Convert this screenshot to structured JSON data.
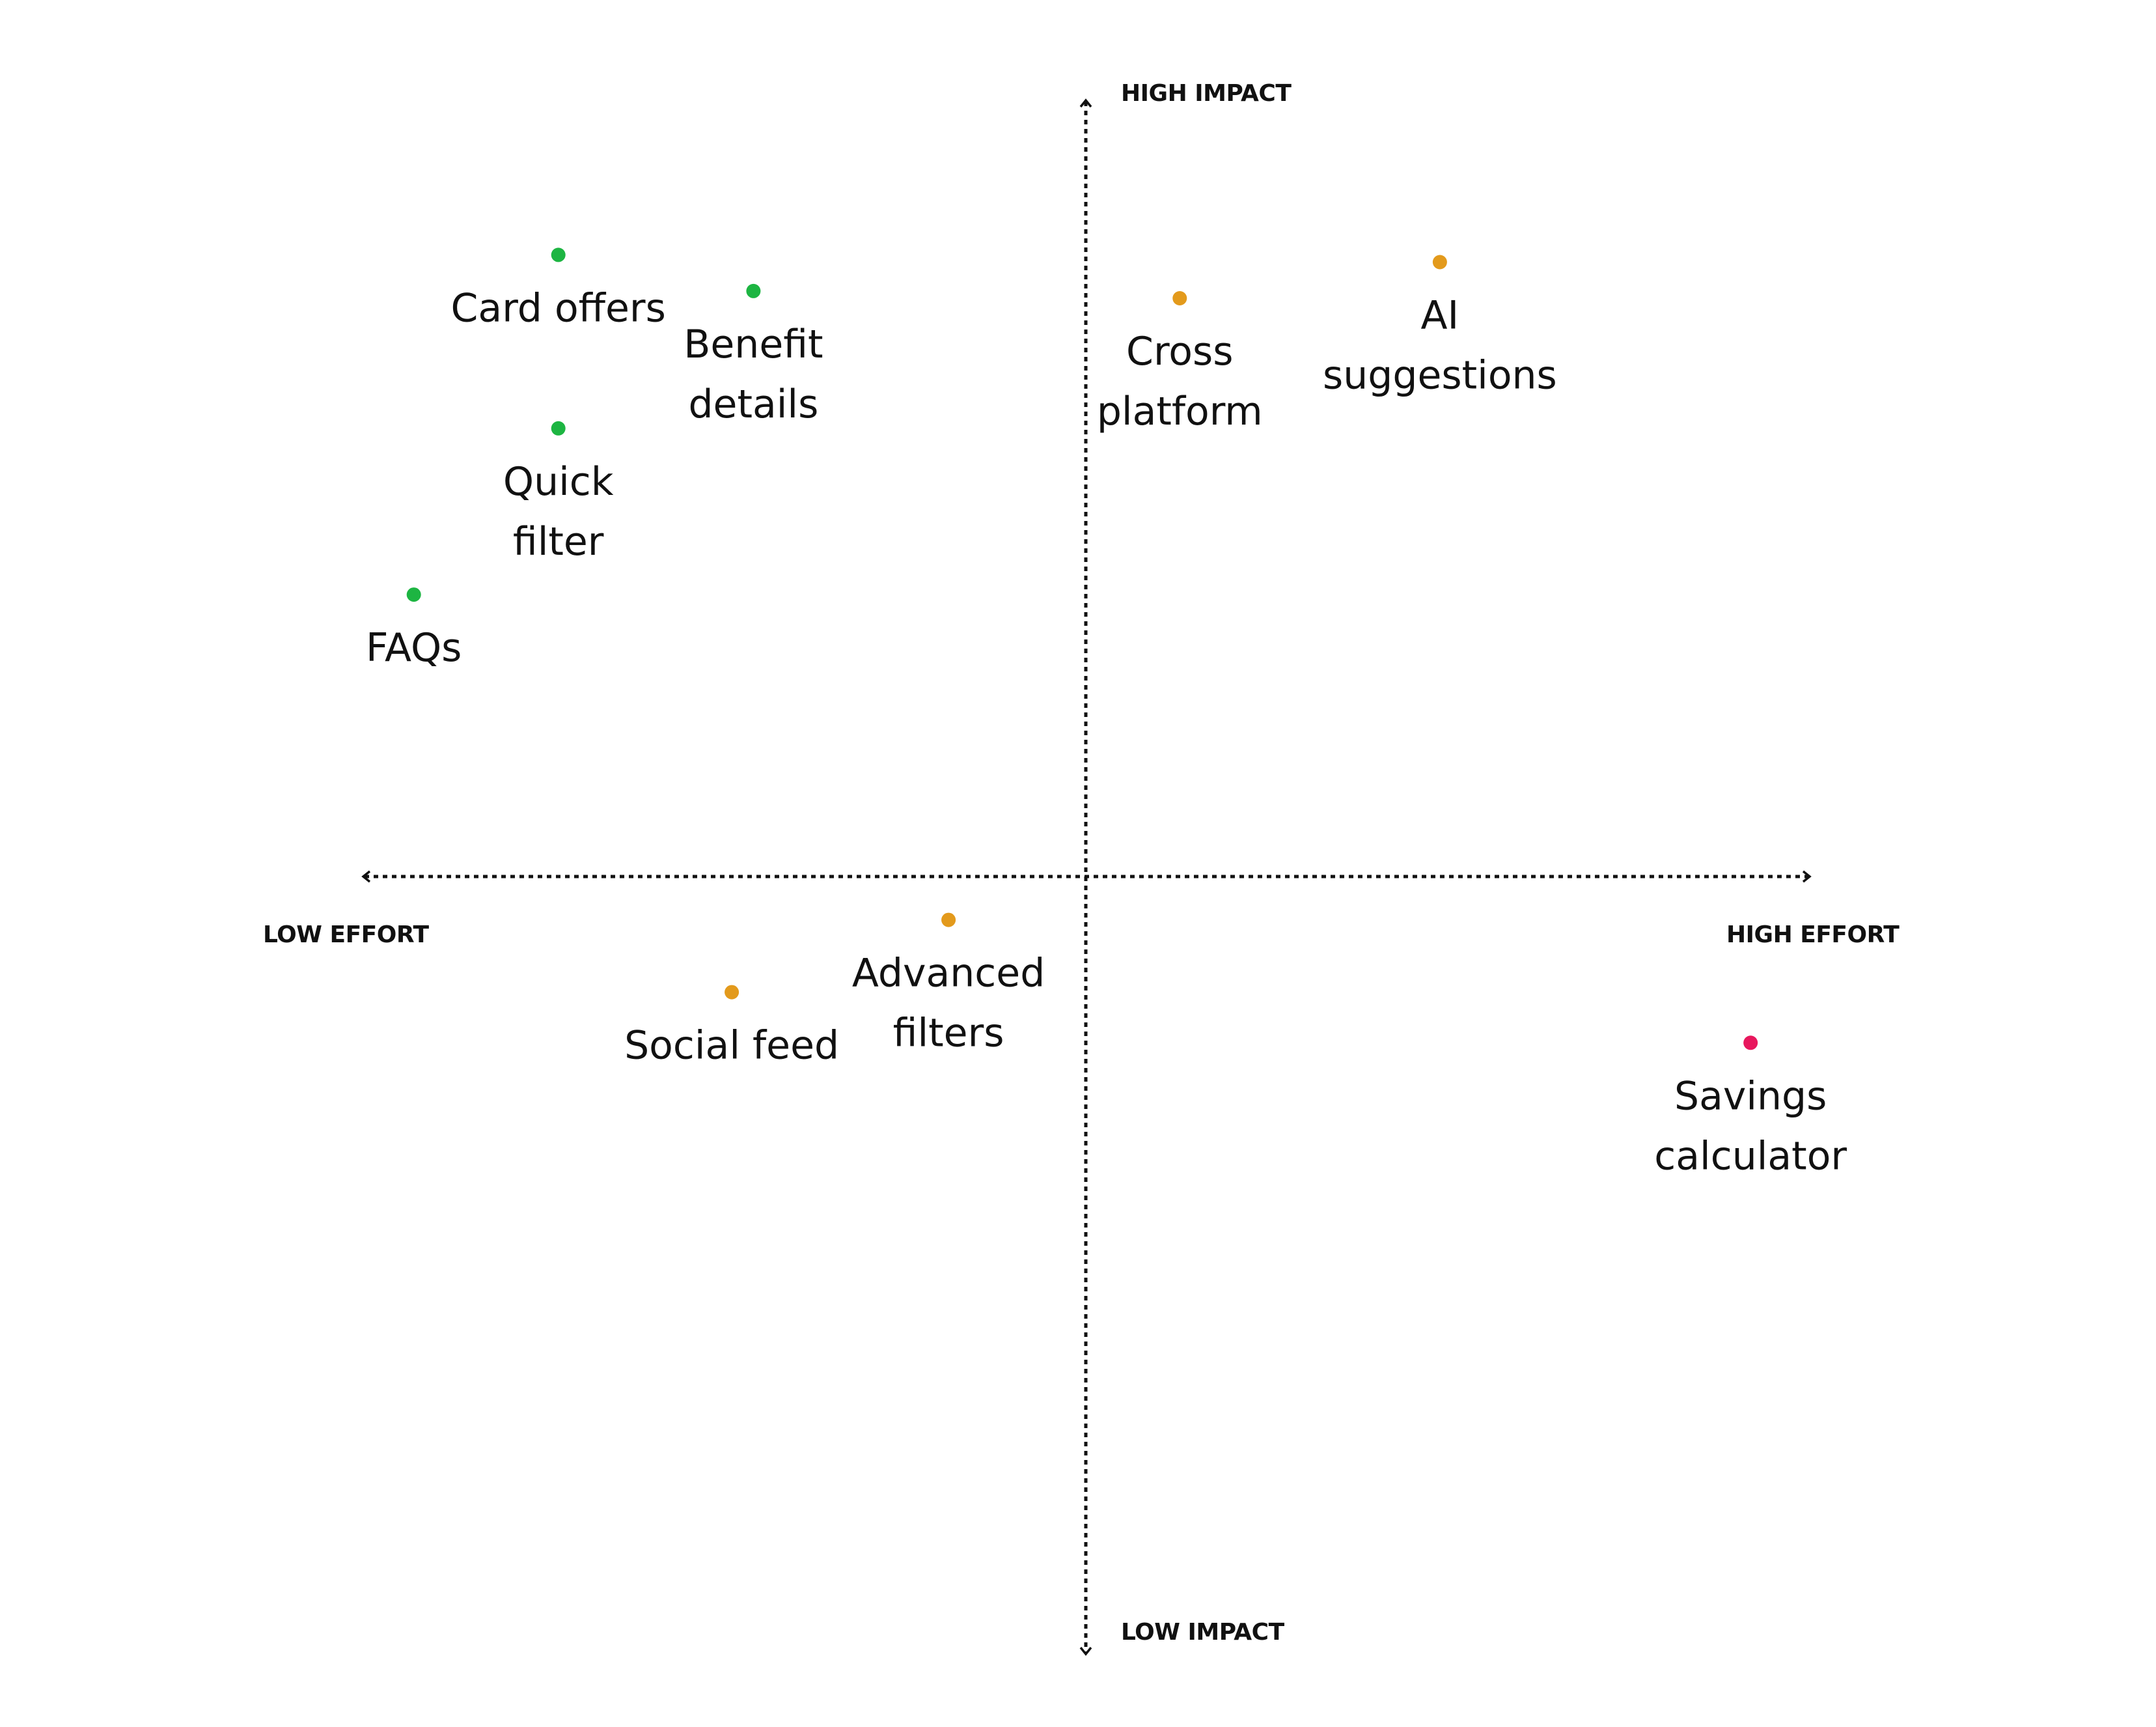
{
  "chart_data": {
    "type": "scatter",
    "title": "",
    "xlabel_low": "LOW EFFORT",
    "xlabel_high": "HIGH EFFORT",
    "ylabel_high": "HIGH IMPACT",
    "ylabel_low": "LOW IMPACT",
    "xlim": [
      -100,
      100
    ],
    "ylim": [
      -100,
      100
    ],
    "colors": {
      "quick_win": "#1DB542",
      "medium": "#E39A1C",
      "high_effort": "#E8175D",
      "axis": "#111111"
    },
    "points": [
      {
        "name": "Card offers",
        "lines": [
          "Card offers"
        ],
        "x": -73,
        "y": 86,
        "group": "quick_win"
      },
      {
        "name": "Benefit details",
        "lines": [
          "Benefit",
          "details"
        ],
        "x": -46,
        "y": 81,
        "group": "quick_win"
      },
      {
        "name": "Quick filter",
        "lines": [
          "Quick",
          "filter"
        ],
        "x": -73,
        "y": 62,
        "group": "quick_win"
      },
      {
        "name": "FAQs",
        "lines": [
          "FAQs"
        ],
        "x": -93,
        "y": 39,
        "group": "quick_win"
      },
      {
        "name": "Cross platform",
        "lines": [
          "Cross",
          "platform"
        ],
        "x": 13,
        "y": 80,
        "group": "medium"
      },
      {
        "name": "AI suggestions",
        "lines": [
          "AI",
          "suggestions"
        ],
        "x": 49,
        "y": 85,
        "group": "medium"
      },
      {
        "name": "Advanced filters",
        "lines": [
          "Advanced",
          "filters"
        ],
        "x": -19,
        "y": -6,
        "group": "medium"
      },
      {
        "name": "Social feed",
        "lines": [
          "Social feed"
        ],
        "x": -49,
        "y": -16,
        "group": "medium"
      },
      {
        "name": "Savings calculator",
        "lines": [
          "Savings",
          "calculator"
        ],
        "x": 92,
        "y": -23,
        "group": "high_effort"
      }
    ]
  }
}
